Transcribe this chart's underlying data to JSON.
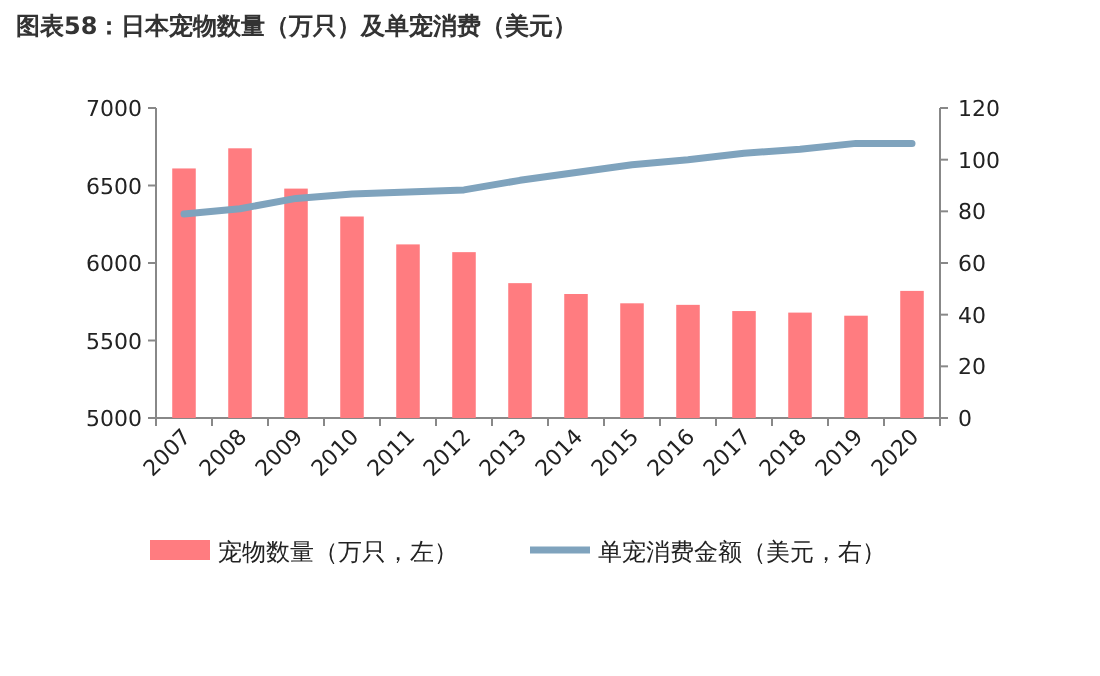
{
  "chart_data": {
    "type": "bar",
    "title": "图表58：日本宠物数量（万只）及单宠消费（美元）",
    "categories": [
      "2007",
      "2008",
      "2009",
      "2010",
      "2011",
      "2012",
      "2013",
      "2014",
      "2015",
      "2016",
      "2017",
      "2018",
      "2019",
      "2020"
    ],
    "series": [
      {
        "name": "宠物数量（万只，左）",
        "color": "#ff7c80",
        "values": [
          6610,
          6740,
          6480,
          6300,
          6120,
          6070,
          5870,
          5800,
          5740,
          5730,
          5690,
          5680,
          5660,
          5820
        ]
      },
      {
        "name": "单宠消费金额（美元，右）",
        "type": "line",
        "axis": "y2",
        "color": "#7fa3bd",
        "values": [
          79,
          81,
          85,
          86.7,
          87.5,
          88.3,
          92,
          95,
          98,
          100,
          102.5,
          104,
          106.3,
          106.3
        ]
      }
    ],
    "ylim": [
      5000,
      7000
    ],
    "yticks": [
      5000,
      5500,
      6000,
      6500,
      7000
    ],
    "y2lim": [
      0,
      120
    ],
    "y2ticks": [
      0,
      20,
      40,
      60,
      80,
      100,
      120
    ],
    "legend": "bottom",
    "grid": false
  }
}
